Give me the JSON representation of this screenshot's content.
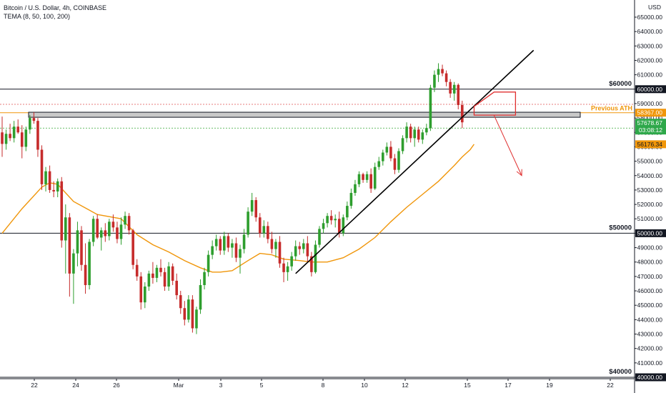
{
  "header": {
    "symbol_line": "Bitcoin / U.S. Dollar, 4h, COINBASE",
    "indicator_line": "TEMA (8, 50, 100, 200)"
  },
  "chart_data": {
    "type": "candlestick",
    "y_unit": "USD",
    "ylim": [
      40000,
      65500
    ],
    "y_ticks": [
      40000,
      41000,
      42000,
      43000,
      44000,
      45000,
      46000,
      47000,
      48000,
      49000,
      50000,
      51000,
      52000,
      53000,
      54000,
      55000,
      56000,
      57000,
      58000,
      59000,
      60000,
      61000,
      62000,
      63000,
      64000,
      65000
    ],
    "x_ticks": [
      "22",
      "24",
      "26",
      "Mar",
      "3",
      "5",
      "8",
      "10",
      "12",
      "15",
      "17",
      "19",
      "22"
    ],
    "grid": false,
    "horizontal_levels": [
      {
        "label": "$60000",
        "value": 60000,
        "tag": "60000.00"
      },
      {
        "label": "$50000",
        "value": 50000,
        "tag": "50000.00"
      },
      {
        "label": "$40000",
        "value": 40000,
        "tag": "40000.00"
      }
    ],
    "previous_ath": {
      "label": "Previous ATH",
      "value": 58367,
      "tag": "58367.00"
    },
    "current_price_tag": "57678.67",
    "countdown_tag": "03:08:12",
    "tema_tag": "56176.34",
    "colors": {
      "up": "#2e9e2e",
      "down": "#c62b2b",
      "tema": "#f0960a",
      "ath": "#f0960a",
      "annotation": "#e03030"
    },
    "candles": [
      [
        57000,
        58100,
        55300,
        56200
      ],
      [
        56200,
        57200,
        55800,
        56900
      ],
      [
        56900,
        57600,
        56400,
        56600
      ],
      [
        56600,
        57800,
        56300,
        57400
      ],
      [
        57400,
        57900,
        56900,
        57000
      ],
      [
        57000,
        57500,
        55200,
        56000
      ],
      [
        56000,
        57400,
        55700,
        57200
      ],
      [
        57200,
        58200,
        56900,
        58000
      ],
      [
        58000,
        58400,
        57600,
        57800
      ],
      [
        57800,
        58000,
        55300,
        55800
      ],
      [
        55800,
        56100,
        53000,
        53400
      ],
      [
        53400,
        54600,
        52900,
        54300
      ],
      [
        54300,
        54700,
        52800,
        53000
      ],
      [
        53000,
        53600,
        52500,
        52900
      ],
      [
        52900,
        53800,
        52500,
        53600
      ],
      [
        53600,
        53900,
        49000,
        49500
      ],
      [
        49500,
        52000,
        47200,
        51100
      ],
      [
        51100,
        51400,
        45600,
        47200
      ],
      [
        47200,
        48900,
        45100,
        48600
      ],
      [
        48600,
        50800,
        47700,
        50200
      ],
      [
        50200,
        50500,
        47400,
        47800
      ],
      [
        47800,
        49300,
        45800,
        46400
      ],
      [
        46400,
        49600,
        46100,
        49400
      ],
      [
        49400,
        51200,
        49100,
        51000
      ],
      [
        51000,
        51300,
        49600,
        49700
      ],
      [
        49700,
        50400,
        48800,
        50200
      ],
      [
        50200,
        50700,
        49400,
        49800
      ],
      [
        49800,
        51000,
        49500,
        50800
      ],
      [
        50800,
        51300,
        50100,
        50400
      ],
      [
        50400,
        50800,
        49300,
        49600
      ],
      [
        49600,
        51100,
        49200,
        50600
      ],
      [
        50600,
        51500,
        50300,
        51200
      ],
      [
        51200,
        51400,
        49900,
        50200
      ],
      [
        50200,
        50300,
        47500,
        47800
      ],
      [
        47800,
        48200,
        46700,
        47000
      ],
      [
        47000,
        47300,
        44700,
        45200
      ],
      [
        45200,
        46600,
        44800,
        46300
      ],
      [
        46300,
        47400,
        46000,
        47200
      ],
      [
        47200,
        48000,
        46500,
        46900
      ],
      [
        46900,
        47800,
        46600,
        47600
      ],
      [
        47600,
        48200,
        47000,
        47300
      ],
      [
        47300,
        47600,
        46000,
        46300
      ],
      [
        46300,
        48000,
        46000,
        47700
      ],
      [
        47700,
        47900,
        46400,
        46700
      ],
      [
        46700,
        47200,
        45400,
        45700
      ],
      [
        45700,
        46000,
        44400,
        44800
      ],
      [
        44800,
        45300,
        43600,
        44000
      ],
      [
        44000,
        45700,
        43800,
        45400
      ],
      [
        45400,
        45700,
        43100,
        43400
      ],
      [
        43400,
        44900,
        43000,
        44700
      ],
      [
        44700,
        46800,
        44400,
        46400
      ],
      [
        46400,
        47600,
        46100,
        47300
      ],
      [
        47300,
        48800,
        47000,
        48500
      ],
      [
        48500,
        49500,
        48200,
        49100
      ],
      [
        49100,
        49900,
        48800,
        49600
      ],
      [
        49600,
        49800,
        48500,
        48800
      ],
      [
        48800,
        50100,
        48500,
        49800
      ],
      [
        49800,
        50000,
        48700,
        49000
      ],
      [
        49000,
        49600,
        48300,
        49300
      ],
      [
        49300,
        49700,
        48000,
        48300
      ],
      [
        48300,
        49200,
        47200,
        48900
      ],
      [
        48900,
        50300,
        48600,
        49900
      ],
      [
        49900,
        51800,
        49700,
        51500
      ],
      [
        51500,
        52800,
        51200,
        52300
      ],
      [
        52300,
        52500,
        50800,
        51100
      ],
      [
        51100,
        51400,
        49700,
        50000
      ],
      [
        50000,
        50900,
        49700,
        50500
      ],
      [
        50500,
        50800,
        49300,
        49600
      ],
      [
        49600,
        50100,
        48600,
        48900
      ],
      [
        48900,
        49600,
        48300,
        49400
      ],
      [
        49400,
        49800,
        47600,
        47900
      ],
      [
        47900,
        48300,
        46600,
        47300
      ],
      [
        47300,
        48000,
        46700,
        47700
      ],
      [
        47700,
        48700,
        47400,
        48400
      ],
      [
        48400,
        49500,
        48100,
        49100
      ],
      [
        49100,
        49400,
        48500,
        48900
      ],
      [
        48900,
        49600,
        48600,
        49300
      ],
      [
        49300,
        49800,
        48000,
        48400
      ],
      [
        48400,
        48700,
        47000,
        47300
      ],
      [
        47300,
        49500,
        47200,
        49200
      ],
      [
        49200,
        50500,
        49000,
        50300
      ],
      [
        50300,
        51000,
        50000,
        50700
      ],
      [
        50700,
        51400,
        50400,
        51200
      ],
      [
        51200,
        51600,
        50600,
        50900
      ],
      [
        50900,
        51300,
        50400,
        51000
      ],
      [
        51000,
        51500,
        49700,
        50000
      ],
      [
        50000,
        51300,
        49800,
        51100
      ],
      [
        51100,
        52200,
        50900,
        51900
      ],
      [
        51900,
        53100,
        51700,
        52800
      ],
      [
        52800,
        53700,
        52600,
        53400
      ],
      [
        53400,
        54300,
        53200,
        54100
      ],
      [
        54100,
        54200,
        53500,
        53700
      ],
      [
        53700,
        54300,
        53500,
        54100
      ],
      [
        54100,
        54500,
        52800,
        53100
      ],
      [
        53100,
        54900,
        53000,
        54600
      ],
      [
        54600,
        55300,
        54400,
        55000
      ],
      [
        55000,
        55800,
        54700,
        55600
      ],
      [
        55600,
        56300,
        55400,
        56000
      ],
      [
        56000,
        56400,
        55000,
        55200
      ],
      [
        55200,
        55500,
        54100,
        54400
      ],
      [
        54400,
        55900,
        54200,
        55700
      ],
      [
        55700,
        56800,
        55500,
        56600
      ],
      [
        56600,
        57700,
        56300,
        57400
      ],
      [
        57400,
        57600,
        56300,
        56600
      ],
      [
        56600,
        57400,
        56000,
        57200
      ],
      [
        57200,
        57400,
        56300,
        56500
      ],
      [
        56500,
        57200,
        56200,
        57000
      ],
      [
        57000,
        57600,
        56800,
        57300
      ],
      [
        57300,
        60300,
        57100,
        60100
      ],
      [
        60100,
        61300,
        59800,
        61000
      ],
      [
        61000,
        61800,
        60500,
        61400
      ],
      [
        61400,
        61700,
        60900,
        61100
      ],
      [
        61100,
        61300,
        60200,
        60500
      ],
      [
        60500,
        60700,
        59400,
        59700
      ],
      [
        59700,
        60500,
        59200,
        60300
      ],
      [
        60300,
        60400,
        58600,
        58900
      ],
      [
        58900,
        59200,
        57300,
        57700
      ]
    ],
    "tema": [
      [
        0,
        50000
      ],
      [
        5,
        51700
      ],
      [
        10,
        53200
      ],
      [
        12,
        53500
      ],
      [
        14,
        53400
      ],
      [
        18,
        52200
      ],
      [
        24,
        51300
      ],
      [
        30,
        51000
      ],
      [
        34,
        49900
      ],
      [
        38,
        49200
      ],
      [
        42,
        48700
      ],
      [
        46,
        48100
      ],
      [
        50,
        47600
      ],
      [
        53,
        47300
      ],
      [
        55,
        47300
      ],
      [
        58,
        47400
      ],
      [
        62,
        48100
      ],
      [
        65,
        48600
      ],
      [
        68,
        48500
      ],
      [
        71,
        48200
      ],
      [
        75,
        48100
      ],
      [
        78,
        48000
      ],
      [
        82,
        48000
      ],
      [
        86,
        48300
      ],
      [
        90,
        48900
      ],
      [
        94,
        49700
      ],
      [
        98,
        50800
      ],
      [
        102,
        51800
      ],
      [
        106,
        52700
      ],
      [
        110,
        53600
      ],
      [
        114,
        54700
      ],
      [
        116,
        55300
      ],
      [
        118,
        55800
      ],
      [
        119,
        56176
      ]
    ],
    "trendline": {
      "from": [
        74,
        47200
      ],
      "to": [
        134,
        62700
      ]
    },
    "annotation_box": {
      "from": [
        119,
        58200
      ],
      "to": [
        128,
        59800
      ]
    },
    "annotation_arrow": {
      "from": [
        124,
        58200
      ],
      "to": [
        131,
        54000
      ]
    }
  }
}
